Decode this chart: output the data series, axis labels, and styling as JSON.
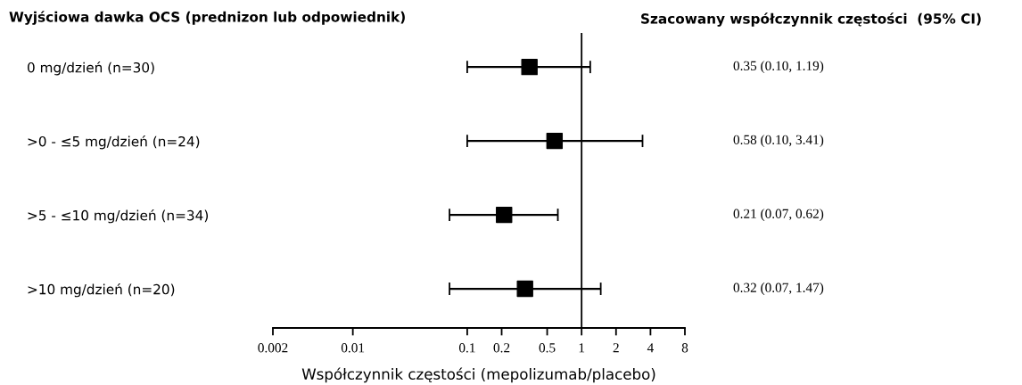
{
  "chart_data": {
    "type": "scatter",
    "orientation": "horizontal",
    "title": "Wyjściowa dawka OCS (prednizon lub odpowiednik)",
    "xlabel": "Współczynnik częstości (mepolizumab/placebo)",
    "annotations": [
      "Szacowany współczynnik częstości  (95% CI)"
    ],
    "categories": [
      "0 mg/dzień (n=30)",
      ">0 - ≤5 mg/dzień (n=24)",
      ">5 - ≤10 mg/dzień (n=34)",
      ">10 mg/dzień (n=20)"
    ],
    "values": [
      0.35,
      0.58,
      0.21,
      0.32
    ],
    "errors": [
      [
        0.1,
        1.19
      ],
      [
        0.1,
        3.41
      ],
      [
        0.07,
        0.62
      ],
      [
        0.07,
        1.47
      ]
    ],
    "value_labels": [
      "0.35 (0.10, 1.19)",
      "0.58 (0.10, 3.41)",
      "0.21 (0.07, 0.62)",
      "0.32 (0.07, 1.47)"
    ],
    "color": "#000000",
    "marker": "square",
    "log": "x",
    "xlim": [
      0.002,
      8
    ],
    "xticks": [
      0.002,
      0.01,
      0.1,
      0.2,
      0.5,
      1,
      2,
      4,
      8
    ],
    "ref_lines": [
      {
        "axis": "x",
        "value": 1,
        "color": "#000000"
      }
    ],
    "grid": false,
    "legend": false
  }
}
